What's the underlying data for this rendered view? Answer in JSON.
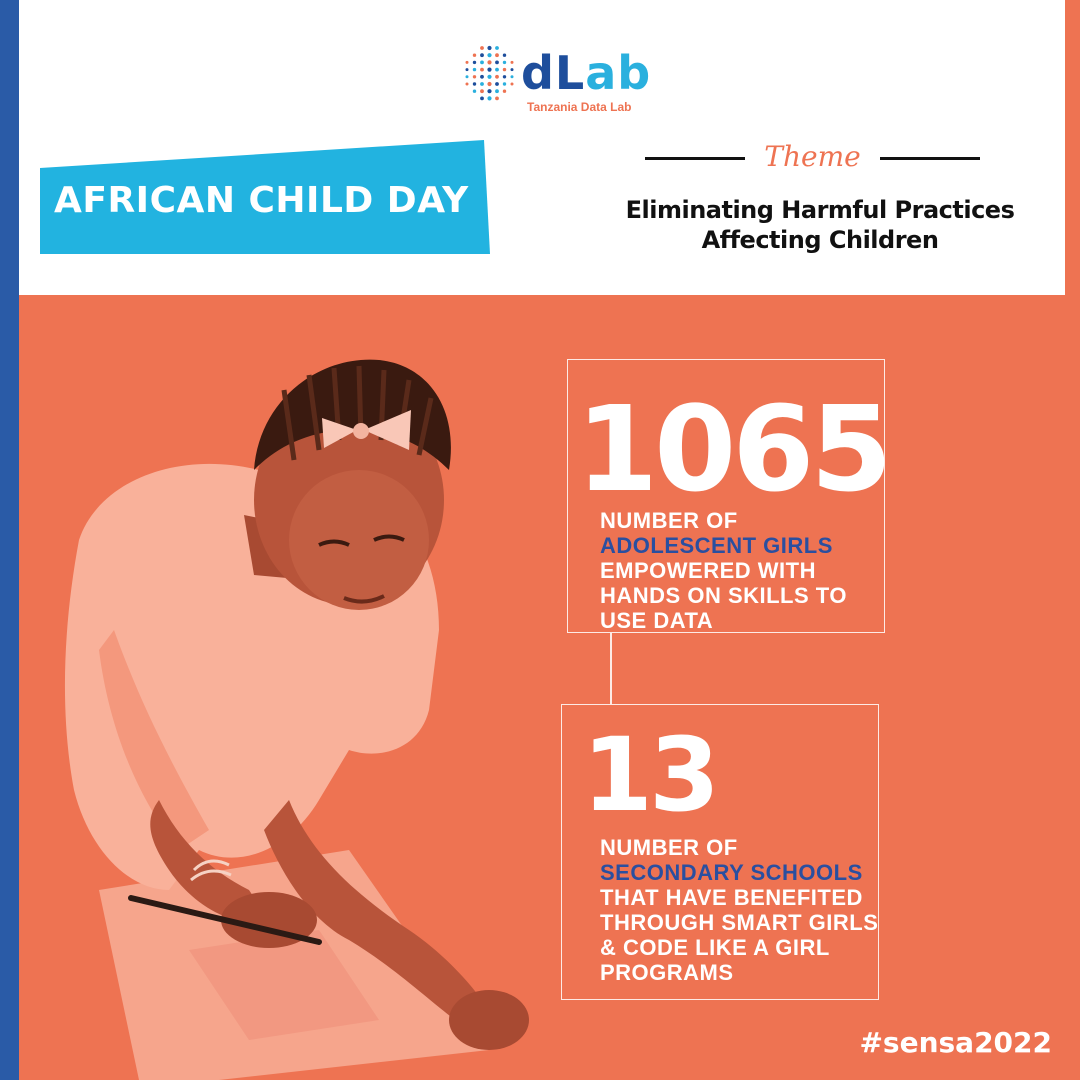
{
  "brand": {
    "name_part1": "dL",
    "name_part2": "ab",
    "tagline": "Tanzania Data Lab"
  },
  "banner": {
    "title": "AFRICAN CHILD DAY"
  },
  "theme": {
    "label": "Theme",
    "line1": "Eliminating Harmful Practices",
    "line2": "Affecting Children"
  },
  "stats": [
    {
      "number": "1065",
      "line1": "NUMBER OF",
      "highlight": "ADOLESCENT GIRLS",
      "line2": "EMPOWERED WITH",
      "line3": "HANDS ON SKILLS TO",
      "line4": "USE DATA"
    },
    {
      "number": "13",
      "line1": "NUMBER OF",
      "highlight": "SECONDARY SCHOOLS",
      "line2": "THAT HAVE BENEFITED",
      "line3": "THROUGH SMART GIRLS",
      "line4": "& CODE LIKE A GIRL",
      "line5": "PROGRAMS"
    }
  ],
  "hashtag": "#sensa2022",
  "colors": {
    "background": "#EE7352",
    "brand_blue": "#2A5BA7",
    "banner_cyan": "#22B3E0",
    "highlight_blue": "#2A4FA0"
  }
}
